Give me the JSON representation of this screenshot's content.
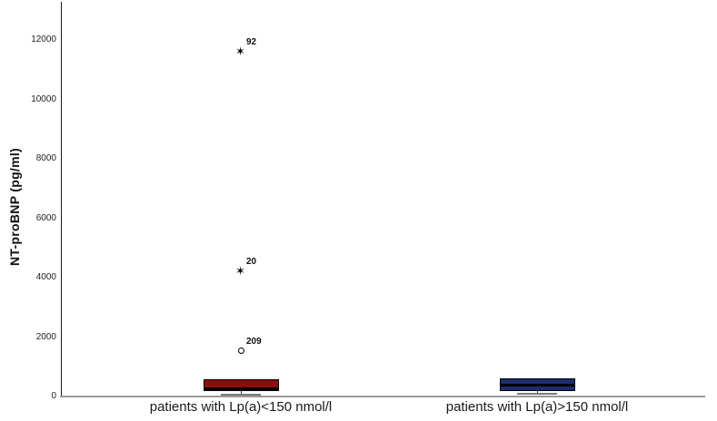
{
  "chart_data": {
    "type": "boxplot",
    "title": "",
    "ylabel": "NT-proBNP (pg/ml)",
    "xlabel": "",
    "ylim": [
      0,
      13500
    ],
    "yticks": [
      0,
      2000,
      4000,
      6000,
      8000,
      10000,
      12000
    ],
    "grid": false,
    "legend": "none",
    "background_color": "#ffffff",
    "axis_color": "#1a1a1a",
    "baseline_color": "#9a9a9a",
    "categories": [
      "patients with Lp(a)<150 nmol/l",
      "patients with Lp(a)>150 nmol/l"
    ],
    "series": [
      {
        "name": "patients with Lp(a)<150 nmol/l",
        "box_color": "#8b0e0e",
        "q1": 183,
        "median": 260,
        "q3": 595,
        "whisker_low": 60,
        "whisker_high": 595,
        "outliers": [
          {
            "value": 1530,
            "label": "209",
            "marker": "circle"
          },
          {
            "value": 4200,
            "label": "20",
            "marker": "star"
          },
          {
            "value": 11600,
            "label": "92",
            "marker": "star"
          }
        ]
      },
      {
        "name": "patients with Lp(a)>150 nmol/l",
        "box_color": "#1b2d6e",
        "q1": 180,
        "median": 380,
        "q3": 610,
        "whisker_low": 100,
        "whisker_high": 610,
        "outliers": []
      }
    ],
    "marker_glyphs": {
      "star": "✶",
      "circle": "circle-outline"
    }
  }
}
